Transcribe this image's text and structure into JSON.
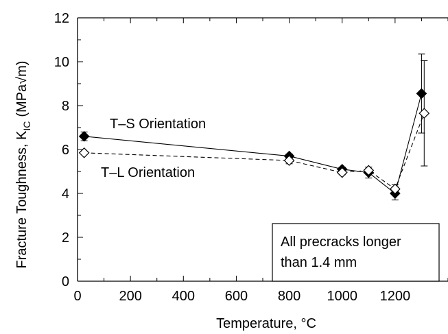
{
  "chart_data": {
    "type": "scatter",
    "xlabel": "Temperature, °C",
    "ylabel_main": "Fracture Toughness, K",
    "ylabel_sub": "IC",
    "ylabel_units": "(MPa√m)",
    "xlim": [
      0,
      1400
    ],
    "ylim": [
      0,
      12
    ],
    "x_ticks": [
      0,
      200,
      400,
      600,
      800,
      1000,
      1200
    ],
    "y_ticks": [
      0,
      2,
      4,
      6,
      8,
      10,
      12
    ],
    "grid": false,
    "legend": "none (series labeled by annotations)",
    "series": [
      {
        "name": "T–S Orientation",
        "marker": "filled-diamond",
        "line": "solid",
        "points": [
          {
            "x": 25,
            "y": 6.6,
            "err": 0.2
          },
          {
            "x": 800,
            "y": 5.7,
            "err": 0.1
          },
          {
            "x": 1000,
            "y": 5.1,
            "err": 0.1
          },
          {
            "x": 1100,
            "y": 4.95,
            "err": 0.25
          },
          {
            "x": 1200,
            "y": 4.0,
            "err": 0.3
          },
          {
            "x": 1300,
            "y": 8.55,
            "err": 1.8
          }
        ]
      },
      {
        "name": "T–L Orientation",
        "marker": "open-diamond",
        "line": "dashed",
        "points": [
          {
            "x": 25,
            "y": 5.85,
            "err": 0.0
          },
          {
            "x": 800,
            "y": 5.5,
            "err": 0.15
          },
          {
            "x": 1000,
            "y": 4.95,
            "err": 0.1
          },
          {
            "x": 1100,
            "y": 5.05,
            "err": 0.15
          },
          {
            "x": 1200,
            "y": 4.2,
            "err": 0.2
          },
          {
            "x": 1310,
            "y": 7.65,
            "err": 2.4
          }
        ]
      }
    ],
    "annotations": [
      {
        "text": "T–S Orientation"
      },
      {
        "text": "T–L Orientation"
      }
    ],
    "note_lines": [
      "All precracks longer",
      "than 1.4 mm"
    ]
  }
}
